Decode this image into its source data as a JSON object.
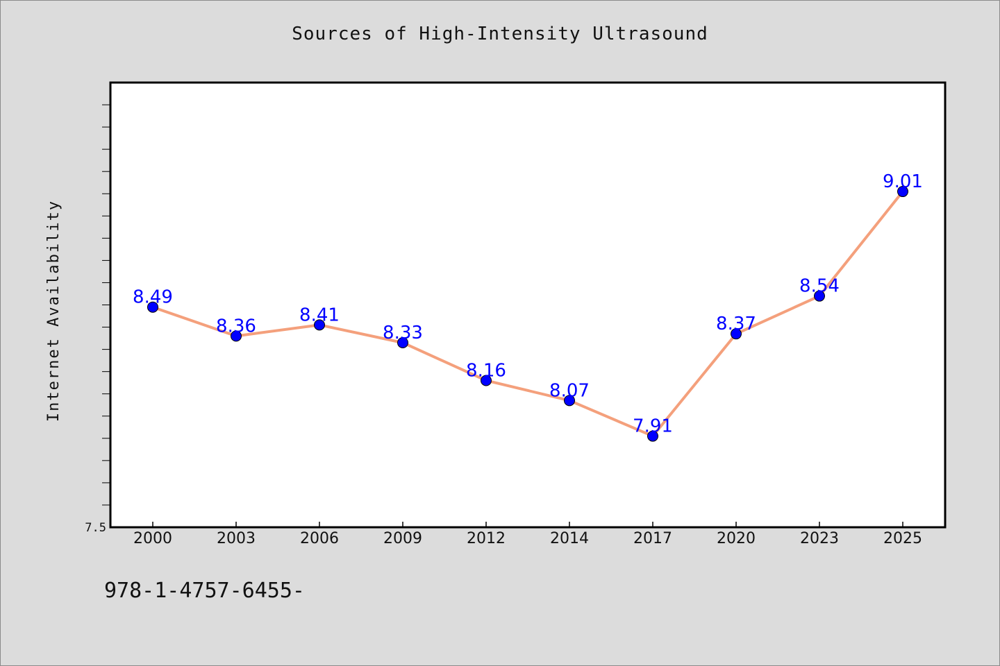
{
  "chart_data": {
    "type": "line",
    "title": "Sources of High-Intensity Ultrasound",
    "xlabel": "",
    "ylabel": "Internet Availability",
    "categories": [
      "2000",
      "2003",
      "2006",
      "2009",
      "2012",
      "2014",
      "2017",
      "2020",
      "2023",
      "2025"
    ],
    "series": [
      {
        "values": [
          8.49,
          8.36,
          8.41,
          8.33,
          8.16,
          8.07,
          7.91,
          8.37,
          8.54,
          9.01
        ],
        "data_labels": [
          "8.49",
          "8.36",
          "8.41",
          "8.33",
          "8.16",
          "8.07",
          "7.91",
          "8.37",
          "8.54",
          "9.01"
        ]
      }
    ],
    "ylim": [
      7.5,
      9.5
    ],
    "yticks_labeled": [
      "7.5"
    ],
    "grid": false,
    "line_color": "#f4a07c",
    "marker_color": "#0000ff",
    "label_color": "#0000ff"
  },
  "footnote": "978-1-4757-6455-"
}
